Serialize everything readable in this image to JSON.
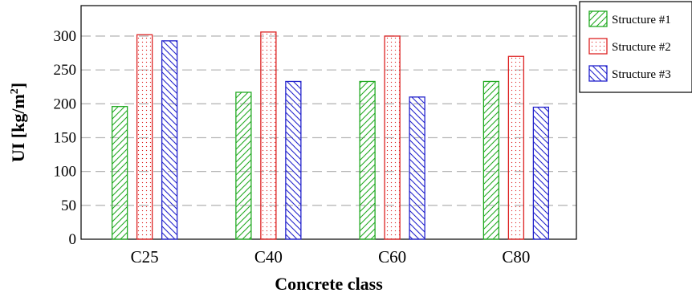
{
  "chart_data": {
    "type": "bar",
    "categories": [
      "C25",
      "C40",
      "C60",
      "C80"
    ],
    "series": [
      {
        "name": "Structure #1",
        "values": [
          196,
          217,
          233,
          233
        ],
        "color": "#22aa22",
        "pattern": "forward-diagonal"
      },
      {
        "name": "Structure #2",
        "values": [
          302,
          306,
          300,
          270
        ],
        "color": "#dd2222",
        "pattern": "dots"
      },
      {
        "name": "Structure #3",
        "values": [
          293,
          233,
          210,
          195
        ],
        "color": "#2222cc",
        "pattern": "backward-diagonal"
      }
    ],
    "xlabel": "Concrete class",
    "ylabel_main": "UI [kg/m",
    "ylabel_sup": "2",
    "ylabel_end": "]",
    "ylim": [
      0,
      345
    ],
    "yticks": [
      0,
      50,
      100,
      150,
      200,
      250,
      300
    ],
    "grid": "horizontal-dashed",
    "legend_position": "outside-top-right"
  }
}
